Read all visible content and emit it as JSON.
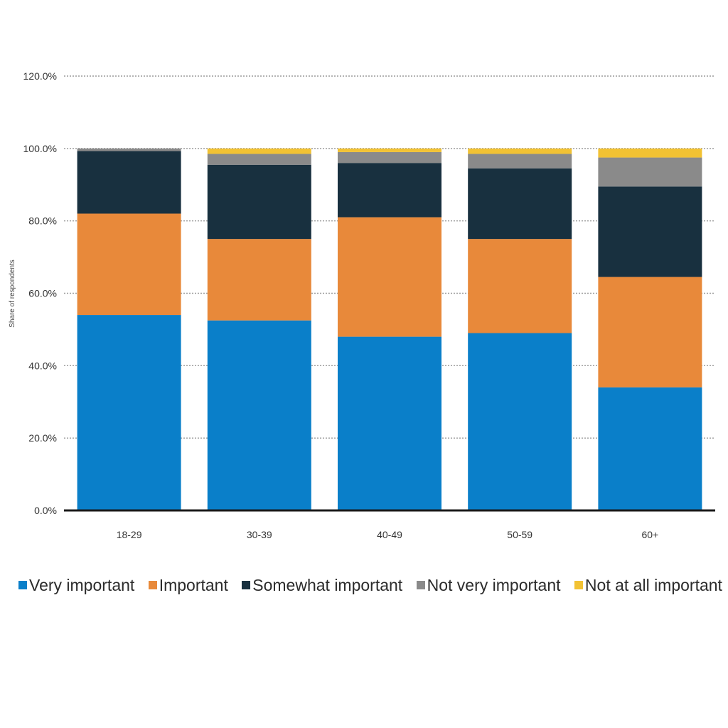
{
  "chart_data": {
    "type": "bar",
    "stacked": true,
    "title": "",
    "xlabel": "",
    "ylabel": "Share of respondents",
    "ylim": [
      0,
      120
    ],
    "yticks": [
      "0.0%",
      "20.0%",
      "40.0%",
      "60.0%",
      "80.0%",
      "100.0%",
      "120.0%"
    ],
    "grid": true,
    "legend_position": "bottom",
    "categories": [
      "18-29",
      "30-39",
      "40-49",
      "50-59",
      "60+"
    ],
    "series": [
      {
        "name": "Very important",
        "color": "#0a7fc9",
        "values": [
          54,
          52.5,
          48,
          49,
          34
        ]
      },
      {
        "name": "Important",
        "color": "#e8893a",
        "values": [
          28,
          22.5,
          33,
          26,
          30.5
        ]
      },
      {
        "name": "Somewhat important",
        "color": "#18303f",
        "values": [
          17.3,
          20.5,
          15,
          19.5,
          25
        ]
      },
      {
        "name": "Not very important",
        "color": "#8a8a8a",
        "values": [
          0.7,
          3,
          3,
          4,
          8
        ]
      },
      {
        "name": "Not at all important",
        "color": "#f2c233",
        "values": [
          0,
          1.5,
          1,
          1.5,
          2.5
        ]
      }
    ]
  }
}
